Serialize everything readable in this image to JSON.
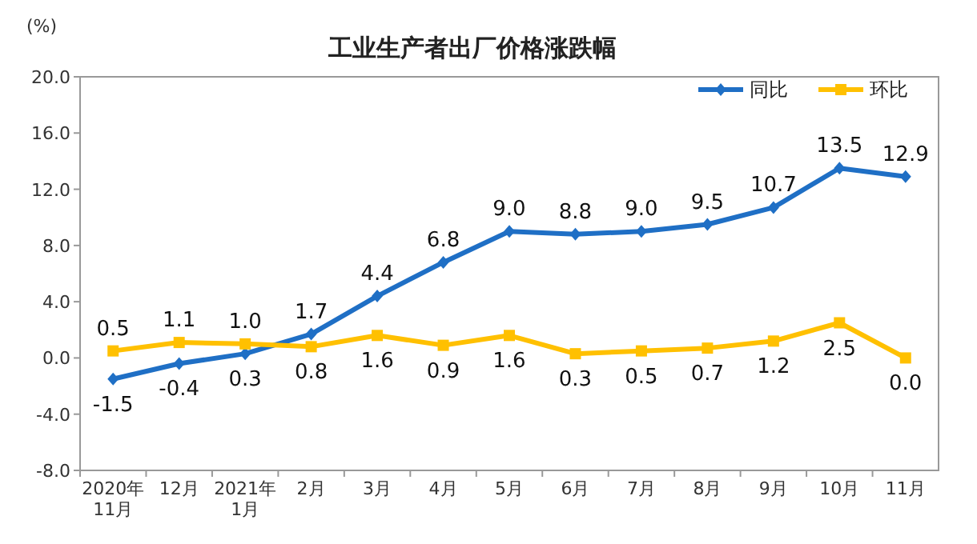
{
  "chart_data": {
    "type": "line",
    "title": "工业生产者出厂价格涨跌幅",
    "ylabel": "(%)",
    "categories": [
      "2020年\n11月",
      "12月",
      "2021年\n1月",
      "2月",
      "3月",
      "4月",
      "5月",
      "6月",
      "7月",
      "8月",
      "9月",
      "10月",
      "11月"
    ],
    "series": [
      {
        "name": "同比",
        "color": "#1f6fc5",
        "marker": "diamond",
        "values": [
          -1.5,
          -0.4,
          0.3,
          1.7,
          4.4,
          6.8,
          9.0,
          8.8,
          9.0,
          9.5,
          10.7,
          13.5,
          12.9
        ],
        "value_labels": [
          "-1.5",
          "-0.4",
          "0.3",
          "1.7",
          "4.4",
          "6.8",
          "9.0",
          "8.8",
          "9.0",
          "9.5",
          "10.7",
          "13.5",
          "12.9"
        ]
      },
      {
        "name": "环比",
        "color": "#ffc000",
        "marker": "square",
        "values": [
          0.5,
          1.1,
          1.0,
          0.8,
          1.6,
          0.9,
          1.6,
          0.3,
          0.5,
          0.7,
          1.2,
          2.5,
          0.0
        ],
        "value_labels": [
          "0.5",
          "1.1",
          "1.0",
          "0.8",
          "1.6",
          "0.9",
          "1.6",
          "0.3",
          "0.5",
          "0.7",
          "1.2",
          "2.5",
          "0.0"
        ]
      }
    ],
    "ylim": [
      -8,
      20
    ],
    "yticks": [
      {
        "value": -8,
        "label": "-8.0"
      },
      {
        "value": -4,
        "label": "-4.0"
      },
      {
        "value": 0,
        "label": "0.0"
      },
      {
        "value": 4,
        "label": "4.0"
      },
      {
        "value": 8,
        "label": "8.0"
      },
      {
        "value": 12,
        "label": "12.0"
      },
      {
        "value": 16,
        "label": "16.0"
      },
      {
        "value": 20,
        "label": "20.0"
      }
    ],
    "grid": false,
    "legend": "top right",
    "line_style": "solid"
  }
}
